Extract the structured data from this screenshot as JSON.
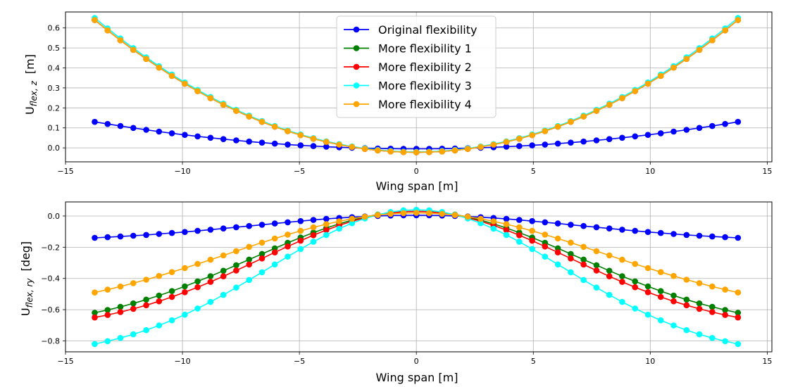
{
  "chart_data": [
    {
      "type": "line",
      "xlabel": "Wing span [m]",
      "ylabel_main": "U",
      "ylabel_sub": "flex, z",
      "ylabel_unit": "[m]",
      "xlim": [
        -15.0,
        15.2
      ],
      "ylim": [
        -0.07,
        0.68
      ],
      "xticks": [
        -15,
        -10,
        -5,
        0,
        5,
        10,
        15
      ],
      "xtick_labels": [
        "−15",
        "−10",
        "−5",
        "0",
        "5",
        "10",
        "15"
      ],
      "yticks": [
        0.0,
        0.1,
        0.2,
        0.3,
        0.4,
        0.5,
        0.6
      ],
      "ytick_labels": [
        "0.0",
        "0.1",
        "0.2",
        "0.3",
        "0.4",
        "0.5",
        "0.6"
      ],
      "grid": true,
      "legend_position": "upper-center",
      "x_range": [
        -13.75,
        13.75
      ],
      "n_points": 51,
      "series": [
        {
          "name": "Original flexibility",
          "color": "#0000ff",
          "profile": "parabola",
          "center": -0.005,
          "edge": 0.13,
          "power": 2.0
        },
        {
          "name": "More flexibility 1",
          "color": "#008000",
          "profile": "parabola",
          "center": -0.022,
          "edge": 0.64,
          "power": 2.0
        },
        {
          "name": "More flexibility 2",
          "color": "#ff0000",
          "profile": "parabola",
          "center": -0.022,
          "edge": 0.64,
          "power": 2.0
        },
        {
          "name": "More flexibility 3",
          "color": "#00ffff",
          "profile": "parabola",
          "center": -0.02,
          "edge": 0.65,
          "power": 2.0
        },
        {
          "name": "More flexibility 4",
          "color": "#ffa500",
          "profile": "parabola",
          "center": -0.022,
          "edge": 0.64,
          "power": 2.0
        }
      ]
    },
    {
      "type": "line",
      "xlabel": "Wing span [m]",
      "ylabel_main": "U",
      "ylabel_sub": "flex, ry",
      "ylabel_unit": "[deg]",
      "xlim": [
        -15.0,
        15.2
      ],
      "ylim": [
        -0.87,
        0.09
      ],
      "xticks": [
        -15,
        -10,
        -5,
        0,
        5,
        10,
        15
      ],
      "xtick_labels": [
        "−15",
        "−10",
        "−5",
        "0",
        "5",
        "10",
        "15"
      ],
      "yticks": [
        0.0,
        -0.2,
        -0.4,
        -0.6,
        -0.8
      ],
      "ytick_labels": [
        "0.0",
        "−0.2",
        "−0.4",
        "−0.6",
        "−0.8"
      ],
      "grid": true,
      "x_range": [
        -13.75,
        13.75
      ],
      "n_points": 51,
      "series": [
        {
          "name": "Original flexibility",
          "color": "#0000ff",
          "profile": "bell",
          "center": 0.005,
          "edge": -0.14,
          "width": 7.0
        },
        {
          "name": "More flexibility 1",
          "color": "#008000",
          "profile": "bell",
          "center": 0.03,
          "edge": -0.62,
          "width": 7.0
        },
        {
          "name": "More flexibility 2",
          "color": "#ff0000",
          "profile": "bell",
          "center": 0.03,
          "edge": -0.65,
          "width": 6.6
        },
        {
          "name": "More flexibility 3",
          "color": "#00ffff",
          "profile": "bell",
          "center": 0.04,
          "edge": -0.82,
          "width": 6.3
        },
        {
          "name": "More flexibility 4",
          "color": "#ffa500",
          "profile": "bell",
          "center": 0.02,
          "edge": -0.49,
          "width": 8.0
        }
      ]
    }
  ]
}
